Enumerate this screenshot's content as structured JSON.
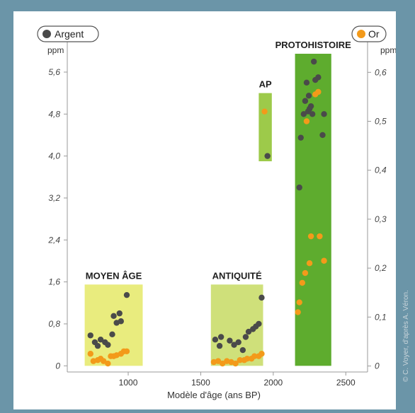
{
  "chart_data": {
    "type": "scatter",
    "xlabel": "Modèle d'âge (ans BP)",
    "x_ticks": [
      1000,
      1500,
      2000,
      2500
    ],
    "xlim": [
      580,
      2650
    ],
    "left_axis": {
      "unit": "ppm",
      "ylim": [
        -0.05,
        5.95
      ],
      "ticks": [
        "0",
        "0,8",
        "1,6",
        "2,4",
        "3,2",
        "4,0",
        "4,8",
        "5,6"
      ],
      "tick_values": [
        0,
        0.8,
        1.6,
        2.4,
        3.2,
        4.0,
        4.8,
        5.6
      ]
    },
    "right_axis": {
      "unit": "ppm",
      "ylim": [
        -0.005,
        0.638
      ],
      "ticks": [
        "0",
        "0,1",
        "0,2",
        "0,3",
        "0,4",
        "0,5",
        "0,6"
      ],
      "tick_values": [
        0,
        0.1,
        0.2,
        0.3,
        0.4,
        0.5,
        0.6
      ]
    },
    "legend": [
      {
        "label": "Argent",
        "color": "#4a4a4a",
        "position": "top-left"
      },
      {
        "label": "Or",
        "color": "#f39a1a",
        "position": "top-right"
      }
    ],
    "periods": [
      {
        "label": "MOYEN ÂGE",
        "x_range": [
          700,
          1100
        ],
        "y_range": [
          0,
          1.55
        ],
        "color": "#e9ec7e"
      },
      {
        "label": "ANTIQUITÉ",
        "x_range": [
          1570,
          1930
        ],
        "y_range": [
          0,
          1.55
        ],
        "color": "#cfe07a"
      },
      {
        "label": "AP",
        "x_range": [
          1900,
          1990
        ],
        "y_range": [
          3.9,
          5.2
        ],
        "color": "#9dca4a"
      },
      {
        "label": "PROTOHISTOIRE",
        "x_range": [
          2150,
          2400
        ],
        "y_range": [
          0,
          5.95
        ],
        "color": "#5eac2e"
      }
    ],
    "series": [
      {
        "name": "Argent",
        "axis": "left",
        "color": "#4a4a4a",
        "points": [
          [
            740,
            0.58
          ],
          [
            770,
            0.45
          ],
          [
            790,
            0.38
          ],
          [
            810,
            0.5
          ],
          [
            840,
            0.45
          ],
          [
            860,
            0.4
          ],
          [
            890,
            0.6
          ],
          [
            900,
            0.95
          ],
          [
            920,
            0.82
          ],
          [
            940,
            1.0
          ],
          [
            950,
            0.85
          ],
          [
            990,
            1.35
          ],
          [
            1600,
            0.5
          ],
          [
            1630,
            0.38
          ],
          [
            1640,
            0.55
          ],
          [
            1700,
            0.48
          ],
          [
            1730,
            0.4
          ],
          [
            1760,
            0.45
          ],
          [
            1790,
            0.3
          ],
          [
            1810,
            0.55
          ],
          [
            1830,
            0.65
          ],
          [
            1860,
            0.7
          ],
          [
            1880,
            0.75
          ],
          [
            1900,
            0.8
          ],
          [
            1920,
            1.3
          ],
          [
            1960,
            4.0
          ],
          [
            2180,
            3.4
          ],
          [
            2190,
            4.35
          ],
          [
            2210,
            4.8
          ],
          [
            2220,
            5.05
          ],
          [
            2230,
            5.4
          ],
          [
            2240,
            4.85
          ],
          [
            2245,
            5.15
          ],
          [
            2250,
            4.9
          ],
          [
            2260,
            4.95
          ],
          [
            2270,
            4.8
          ],
          [
            2280,
            5.8
          ],
          [
            2290,
            5.45
          ],
          [
            2310,
            5.5
          ],
          [
            2340,
            4.4
          ],
          [
            2350,
            4.8
          ]
        ]
      },
      {
        "name": "Or",
        "axis": "right",
        "color": "#f39a1a",
        "points": [
          [
            740,
            0.025
          ],
          [
            760,
            0.01
          ],
          [
            790,
            0.012
          ],
          [
            810,
            0.015
          ],
          [
            830,
            0.01
          ],
          [
            860,
            0.005
          ],
          [
            880,
            0.02
          ],
          [
            900,
            0.02
          ],
          [
            920,
            0.022
          ],
          [
            950,
            0.025
          ],
          [
            970,
            0.03
          ],
          [
            990,
            0.03
          ],
          [
            1590,
            0.008
          ],
          [
            1620,
            0.01
          ],
          [
            1650,
            0.005
          ],
          [
            1680,
            0.01
          ],
          [
            1710,
            0.008
          ],
          [
            1740,
            0.005
          ],
          [
            1770,
            0.012
          ],
          [
            1800,
            0.012
          ],
          [
            1820,
            0.015
          ],
          [
            1850,
            0.015
          ],
          [
            1870,
            0.02
          ],
          [
            1900,
            0.02
          ],
          [
            1920,
            0.025
          ],
          [
            1940,
            0.52
          ],
          [
            2170,
            0.11
          ],
          [
            2180,
            0.13
          ],
          [
            2200,
            0.17
          ],
          [
            2220,
            0.19
          ],
          [
            2230,
            0.5
          ],
          [
            2250,
            0.21
          ],
          [
            2260,
            0.265
          ],
          [
            2290,
            0.555
          ],
          [
            2310,
            0.56
          ],
          [
            2320,
            0.265
          ],
          [
            2350,
            0.215
          ]
        ]
      }
    ]
  },
  "credit": "© C. Voyer, d'après A. Véron."
}
